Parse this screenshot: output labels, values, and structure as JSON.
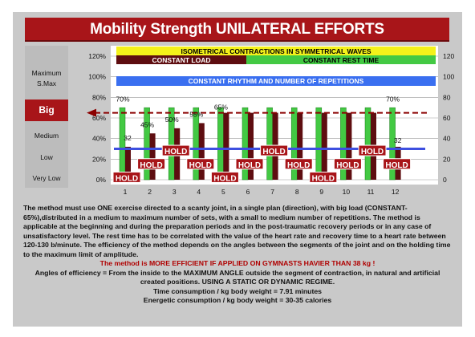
{
  "title": "Mobility Strength UNILATERAL EFFORTS",
  "levels": {
    "maximum": "Maximum",
    "smax": "S.Max",
    "big": "Big",
    "medium": "Medium",
    "low": "Low",
    "very_low": "Very Low"
  },
  "banners": {
    "isometrical": "ISOMETRICAL CONTRACTIONS IN SYMMETRICAL WAVES",
    "constant_load": "CONSTANT LOAD",
    "constant_rest": "CONSTANT REST TIME",
    "constant_rhythm": "CONSTANT RHYTHM AND NUMBER OF REPETITIONS"
  },
  "chart_data": {
    "type": "bar",
    "categories": [
      "1",
      "2",
      "3",
      "4",
      "5",
      "6",
      "7",
      "8",
      "9",
      "10",
      "11",
      "12"
    ],
    "series": [
      {
        "values": [
          70,
          70,
          70,
          70,
          70,
          70,
          70,
          70,
          70,
          70,
          70,
          70
        ],
        "color": "#43c943"
      },
      {
        "values": [
          32,
          45,
          50,
          55,
          65,
          65,
          65,
          65,
          65,
          65,
          65,
          32
        ],
        "color": "#5e0d10"
      }
    ],
    "hold_level": 30,
    "reference_line": 65,
    "y_left_ticks": [
      "0%",
      "20%",
      "40%",
      "60%",
      "80%",
      "100%",
      "120%"
    ],
    "y_right_ticks": [
      "0",
      "20",
      "40",
      "60",
      "80",
      "100",
      "120"
    ],
    "ylim": [
      0,
      120
    ],
    "data_labels": [
      {
        "text": "70%",
        "cat": 1,
        "y": 76
      },
      {
        "text": "45%",
        "cat": 2,
        "y": 51
      },
      {
        "text": "50%",
        "cat": 3,
        "y": 56
      },
      {
        "text": "55%",
        "cat": 4,
        "y": 61
      },
      {
        "text": "65%",
        "cat": 5,
        "y": 68
      },
      {
        "text": "70%",
        "cat": 12,
        "y": 76
      },
      {
        "text": "32",
        "cat": 1,
        "y": 38
      },
      {
        "text": "32",
        "cat": 12,
        "y": 36
      }
    ],
    "hold_badges": [
      {
        "text": "HOLD",
        "cat": 1,
        "y": 2
      },
      {
        "text": "HOLD",
        "cat": 2,
        "y": 15
      },
      {
        "text": "HOLD",
        "cat": 3,
        "y": 28
      },
      {
        "text": "HOLD",
        "cat": 4,
        "y": 15
      },
      {
        "text": "HOLD",
        "cat": 5,
        "y": 2
      },
      {
        "text": "HOLD",
        "cat": 6,
        "y": 15
      },
      {
        "text": "HOLD",
        "cat": 7,
        "y": 28
      },
      {
        "text": "HOLD",
        "cat": 8,
        "y": 15
      },
      {
        "text": "HOLD",
        "cat": 9,
        "y": 2
      },
      {
        "text": "HOLD",
        "cat": 10,
        "y": 15
      },
      {
        "text": "HOLD",
        "cat": 11,
        "y": 28
      },
      {
        "text": "HOLD",
        "cat": 12,
        "y": 15
      }
    ]
  },
  "colors": {
    "title_red": "#a81519",
    "green": "#43c943",
    "dark_red": "#5e0d10",
    "blue": "#3d4fe0",
    "yellow": "#f4f21a",
    "banner_blue": "#3a6ff0"
  },
  "text": {
    "p1": "The method must use ONE exercise directed to a scanty joint, in a single plan (direction), with big load (CONSTANT-65%),distributed in a medium to maximum number of sets, with a small to medium number of repetitions. The method is applicable at the beginning and during the preparation periods and in the post-traumatic recovery periods or in any case of unsatisfactory level. The rest time has to be correlated with the value of the heart rate and recovery time to a heart rate between 120-130 b/minute. The efficiency of the method depends on the angles between the segments of the joint and on the holding time to the maximum limit of amplitude.",
    "red_line": "The method is MORE EFFICIENT IF APPLIED ON GYMNASTS HAVIER THAN 38 kg !",
    "p2": "Angles of efficiency = From the inside to the MAXIMUM ANGLE outside the segment of contraction, in natural and artificial created positions. USING A STATIC OR DYNAMIC REGIME.",
    "time_consumption": "Time consumption /  kg body weight =  7.91    minutes",
    "energy_consumption": "Energetic consumption /  kg body weight =  30-35 calories"
  }
}
